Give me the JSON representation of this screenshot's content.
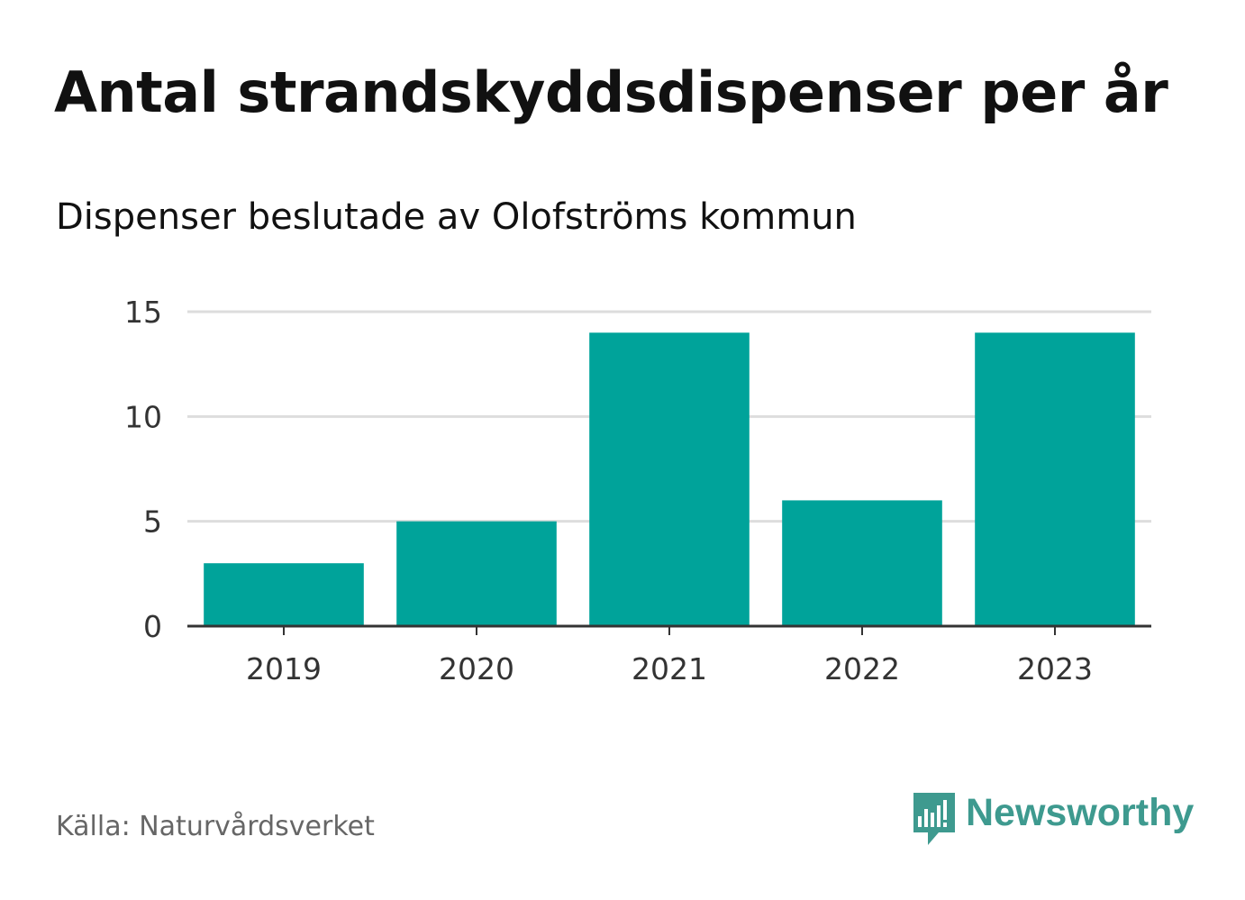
{
  "title": "Antal strandskyddsdispenser per år",
  "subtitle": "Dispenser beslutade av Olofströms kommun",
  "source": "Källa: Naturvårdsverket",
  "logo": {
    "text": "Newsworthy",
    "icon": "newsworthy-logo-icon"
  },
  "colors": {
    "bar": "#00A39A",
    "grid": "#DDDDDD",
    "axis": "#333333",
    "logo": "#3E9A8F",
    "tick": "#333333"
  },
  "chart_data": {
    "type": "bar",
    "title": "Antal strandskyddsdispenser per år",
    "subtitle": "Dispenser beslutade av Olofströms kommun",
    "categories": [
      "2019",
      "2020",
      "2021",
      "2022",
      "2023"
    ],
    "values": [
      3,
      5,
      14,
      6,
      14
    ],
    "ylim": [
      0,
      15
    ],
    "yticks": [
      0,
      5,
      10,
      15
    ],
    "xlabel": "",
    "ylabel": "",
    "grid": true,
    "legend": "none"
  }
}
